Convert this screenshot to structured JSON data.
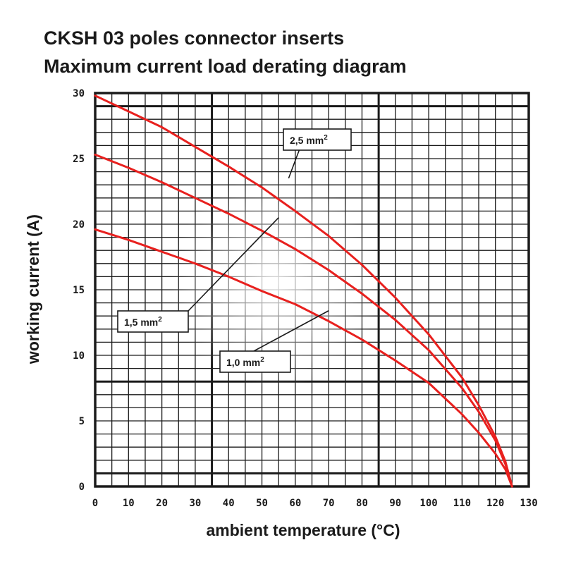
{
  "title_line1": "CKSH 03 poles connector inserts",
  "title_line2": "Maximum current load derating diagram",
  "chart_data": {
    "type": "line",
    "title": "CKSH 03 poles connector inserts Maximum current load derating diagram",
    "xlabel": "ambient temperature (°C)",
    "ylabel": "working current (A)",
    "xlim": [
      0,
      130
    ],
    "ylim": [
      0,
      30
    ],
    "xticks": [
      0,
      10,
      20,
      30,
      40,
      50,
      60,
      70,
      80,
      90,
      100,
      110,
      120,
      130
    ],
    "yticks": [
      0,
      5,
      10,
      15,
      20,
      25,
      30
    ],
    "grid": true,
    "line_color": "#e8201e",
    "series": [
      {
        "name": "2,5 mm²",
        "x": [
          0,
          10,
          20,
          30,
          40,
          50,
          60,
          70,
          80,
          90,
          100,
          110,
          115,
          120,
          123,
          125
        ],
        "y": [
          29.8,
          28.6,
          27.4,
          25.9,
          24.4,
          22.8,
          21.0,
          19.1,
          16.9,
          14.4,
          11.6,
          8.3,
          6.2,
          3.8,
          1.9,
          0
        ]
      },
      {
        "name": "1,5 mm²",
        "x": [
          0,
          10,
          20,
          30,
          40,
          50,
          60,
          70,
          80,
          90,
          100,
          110,
          115,
          120,
          123,
          125
        ],
        "y": [
          25.3,
          24.3,
          23.2,
          22.0,
          20.8,
          19.5,
          18.1,
          16.5,
          14.7,
          12.7,
          10.4,
          7.5,
          5.7,
          3.5,
          1.7,
          0
        ]
      },
      {
        "name": "1,0 mm²",
        "x": [
          0,
          10,
          20,
          30,
          40,
          50,
          60,
          70,
          80,
          90,
          100,
          110,
          115,
          120,
          123,
          125
        ],
        "y": [
          19.6,
          18.8,
          17.9,
          17.0,
          16.0,
          14.9,
          13.9,
          12.6,
          11.2,
          9.6,
          7.9,
          5.5,
          4.1,
          2.5,
          1.3,
          0
        ]
      }
    ],
    "annotations": [
      {
        "text": "2,5 mm",
        "sup": "2",
        "series": "2,5 mm²"
      },
      {
        "text": "1,5 mm",
        "sup": "2",
        "series": "1,5 mm²"
      },
      {
        "text": "1,0 mm",
        "sup": "2",
        "series": "1,0 mm²"
      }
    ]
  }
}
